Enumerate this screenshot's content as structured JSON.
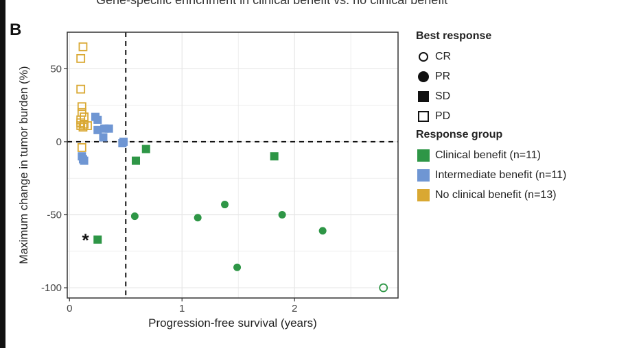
{
  "header": {
    "top_title": "Gene-specific enrichment in clinical benefit vs. no clinical benefit",
    "panel_letter": "B"
  },
  "legend": {
    "best_response_title": "Best response",
    "best_response_items": [
      {
        "label": "CR",
        "shape": "circle-open"
      },
      {
        "label": "PR",
        "shape": "circle-filled"
      },
      {
        "label": "SD",
        "shape": "square-filled"
      },
      {
        "label": "PD",
        "shape": "square-open"
      }
    ],
    "response_group_title": "Response group",
    "response_group_items": [
      {
        "label": "Clinical benefit (n=11)",
        "color": "#2e9646"
      },
      {
        "label": "Intermediate benefit (n=11)",
        "color": "#6f96d3"
      },
      {
        "label": "No clinical benefit (n=13)",
        "color": "#d9a832"
      }
    ]
  },
  "chart_data": {
    "type": "scatter",
    "title": "",
    "xlabel": "Progression-free survival (years)",
    "ylabel": "Maximum change in tumor burden (%)",
    "xlim": [
      -0.02,
      2.92
    ],
    "ylim": [
      -107,
      75
    ],
    "x_ticks": [
      0,
      1,
      2
    ],
    "x_tick_labels": [
      "0",
      "1",
      "2"
    ],
    "y_ticks": [
      50,
      0,
      -50,
      -100
    ],
    "y_tick_labels": [
      "50",
      "0",
      "-50",
      "-100"
    ],
    "grid": true,
    "reference_lines": {
      "x": 0.5,
      "y": 0
    },
    "annotation": {
      "text": "*",
      "x": 0.16,
      "y": -66
    },
    "legend_position": "right",
    "group_colors": {
      "Clinical benefit": "#2e9646",
      "Intermediate benefit": "#6f96d3",
      "No clinical benefit": "#d9a832"
    },
    "points": [
      {
        "x": 0.12,
        "y": 65,
        "response": "PD",
        "group": "No clinical benefit"
      },
      {
        "x": 0.1,
        "y": 57,
        "response": "PD",
        "group": "No clinical benefit"
      },
      {
        "x": 0.1,
        "y": 36,
        "response": "PD",
        "group": "No clinical benefit"
      },
      {
        "x": 0.11,
        "y": 24,
        "response": "PD",
        "group": "No clinical benefit"
      },
      {
        "x": 0.11,
        "y": 20,
        "response": "PD",
        "group": "No clinical benefit"
      },
      {
        "x": 0.13,
        "y": 17,
        "response": "PD",
        "group": "No clinical benefit"
      },
      {
        "x": 0.1,
        "y": 15,
        "response": "PD",
        "group": "No clinical benefit"
      },
      {
        "x": 0.1,
        "y": 13,
        "response": "PD",
        "group": "No clinical benefit"
      },
      {
        "x": 0.13,
        "y": 12,
        "response": "PD",
        "group": "No clinical benefit"
      },
      {
        "x": 0.16,
        "y": 11,
        "response": "PD",
        "group": "No clinical benefit"
      },
      {
        "x": 0.1,
        "y": 11,
        "response": "PD",
        "group": "No clinical benefit"
      },
      {
        "x": 0.12,
        "y": 10,
        "response": "PD",
        "group": "No clinical benefit"
      },
      {
        "x": 0.11,
        "y": -4,
        "response": "PD",
        "group": "No clinical benefit"
      },
      {
        "x": 0.23,
        "y": 17,
        "response": "SD",
        "group": "Intermediate benefit"
      },
      {
        "x": 0.25,
        "y": 15,
        "response": "SD",
        "group": "Intermediate benefit"
      },
      {
        "x": 0.25,
        "y": 8,
        "response": "SD",
        "group": "Intermediate benefit"
      },
      {
        "x": 0.35,
        "y": 9,
        "response": "SD",
        "group": "Intermediate benefit"
      },
      {
        "x": 0.31,
        "y": 9,
        "response": "SD",
        "group": "Intermediate benefit"
      },
      {
        "x": 0.3,
        "y": 3,
        "response": "SD",
        "group": "Intermediate benefit"
      },
      {
        "x": 0.48,
        "y": 0,
        "response": "SD",
        "group": "Intermediate benefit"
      },
      {
        "x": 0.47,
        "y": -1,
        "response": "SD",
        "group": "Intermediate benefit"
      },
      {
        "x": 0.11,
        "y": -10,
        "response": "SD",
        "group": "Intermediate benefit"
      },
      {
        "x": 0.12,
        "y": -12,
        "response": "SD",
        "group": "Intermediate benefit"
      },
      {
        "x": 0.13,
        "y": -13,
        "response": "SD",
        "group": "Intermediate benefit"
      },
      {
        "x": 0.68,
        "y": -5,
        "response": "SD",
        "group": "Clinical benefit"
      },
      {
        "x": 0.59,
        "y": -13,
        "response": "SD",
        "group": "Clinical benefit"
      },
      {
        "x": 1.82,
        "y": -10,
        "response": "SD",
        "group": "Clinical benefit"
      },
      {
        "x": 0.25,
        "y": -67,
        "response": "SD",
        "group": "Clinical benefit"
      },
      {
        "x": 0.58,
        "y": -51,
        "response": "PR",
        "group": "Clinical benefit"
      },
      {
        "x": 1.14,
        "y": -52,
        "response": "PR",
        "group": "Clinical benefit"
      },
      {
        "x": 1.38,
        "y": -43,
        "response": "PR",
        "group": "Clinical benefit"
      },
      {
        "x": 1.49,
        "y": -86,
        "response": "PR",
        "group": "Clinical benefit"
      },
      {
        "x": 1.89,
        "y": -50,
        "response": "PR",
        "group": "Clinical benefit"
      },
      {
        "x": 2.25,
        "y": -61,
        "response": "PR",
        "group": "Clinical benefit"
      },
      {
        "x": 2.79,
        "y": -100,
        "response": "CR",
        "group": "Clinical benefit"
      }
    ]
  }
}
